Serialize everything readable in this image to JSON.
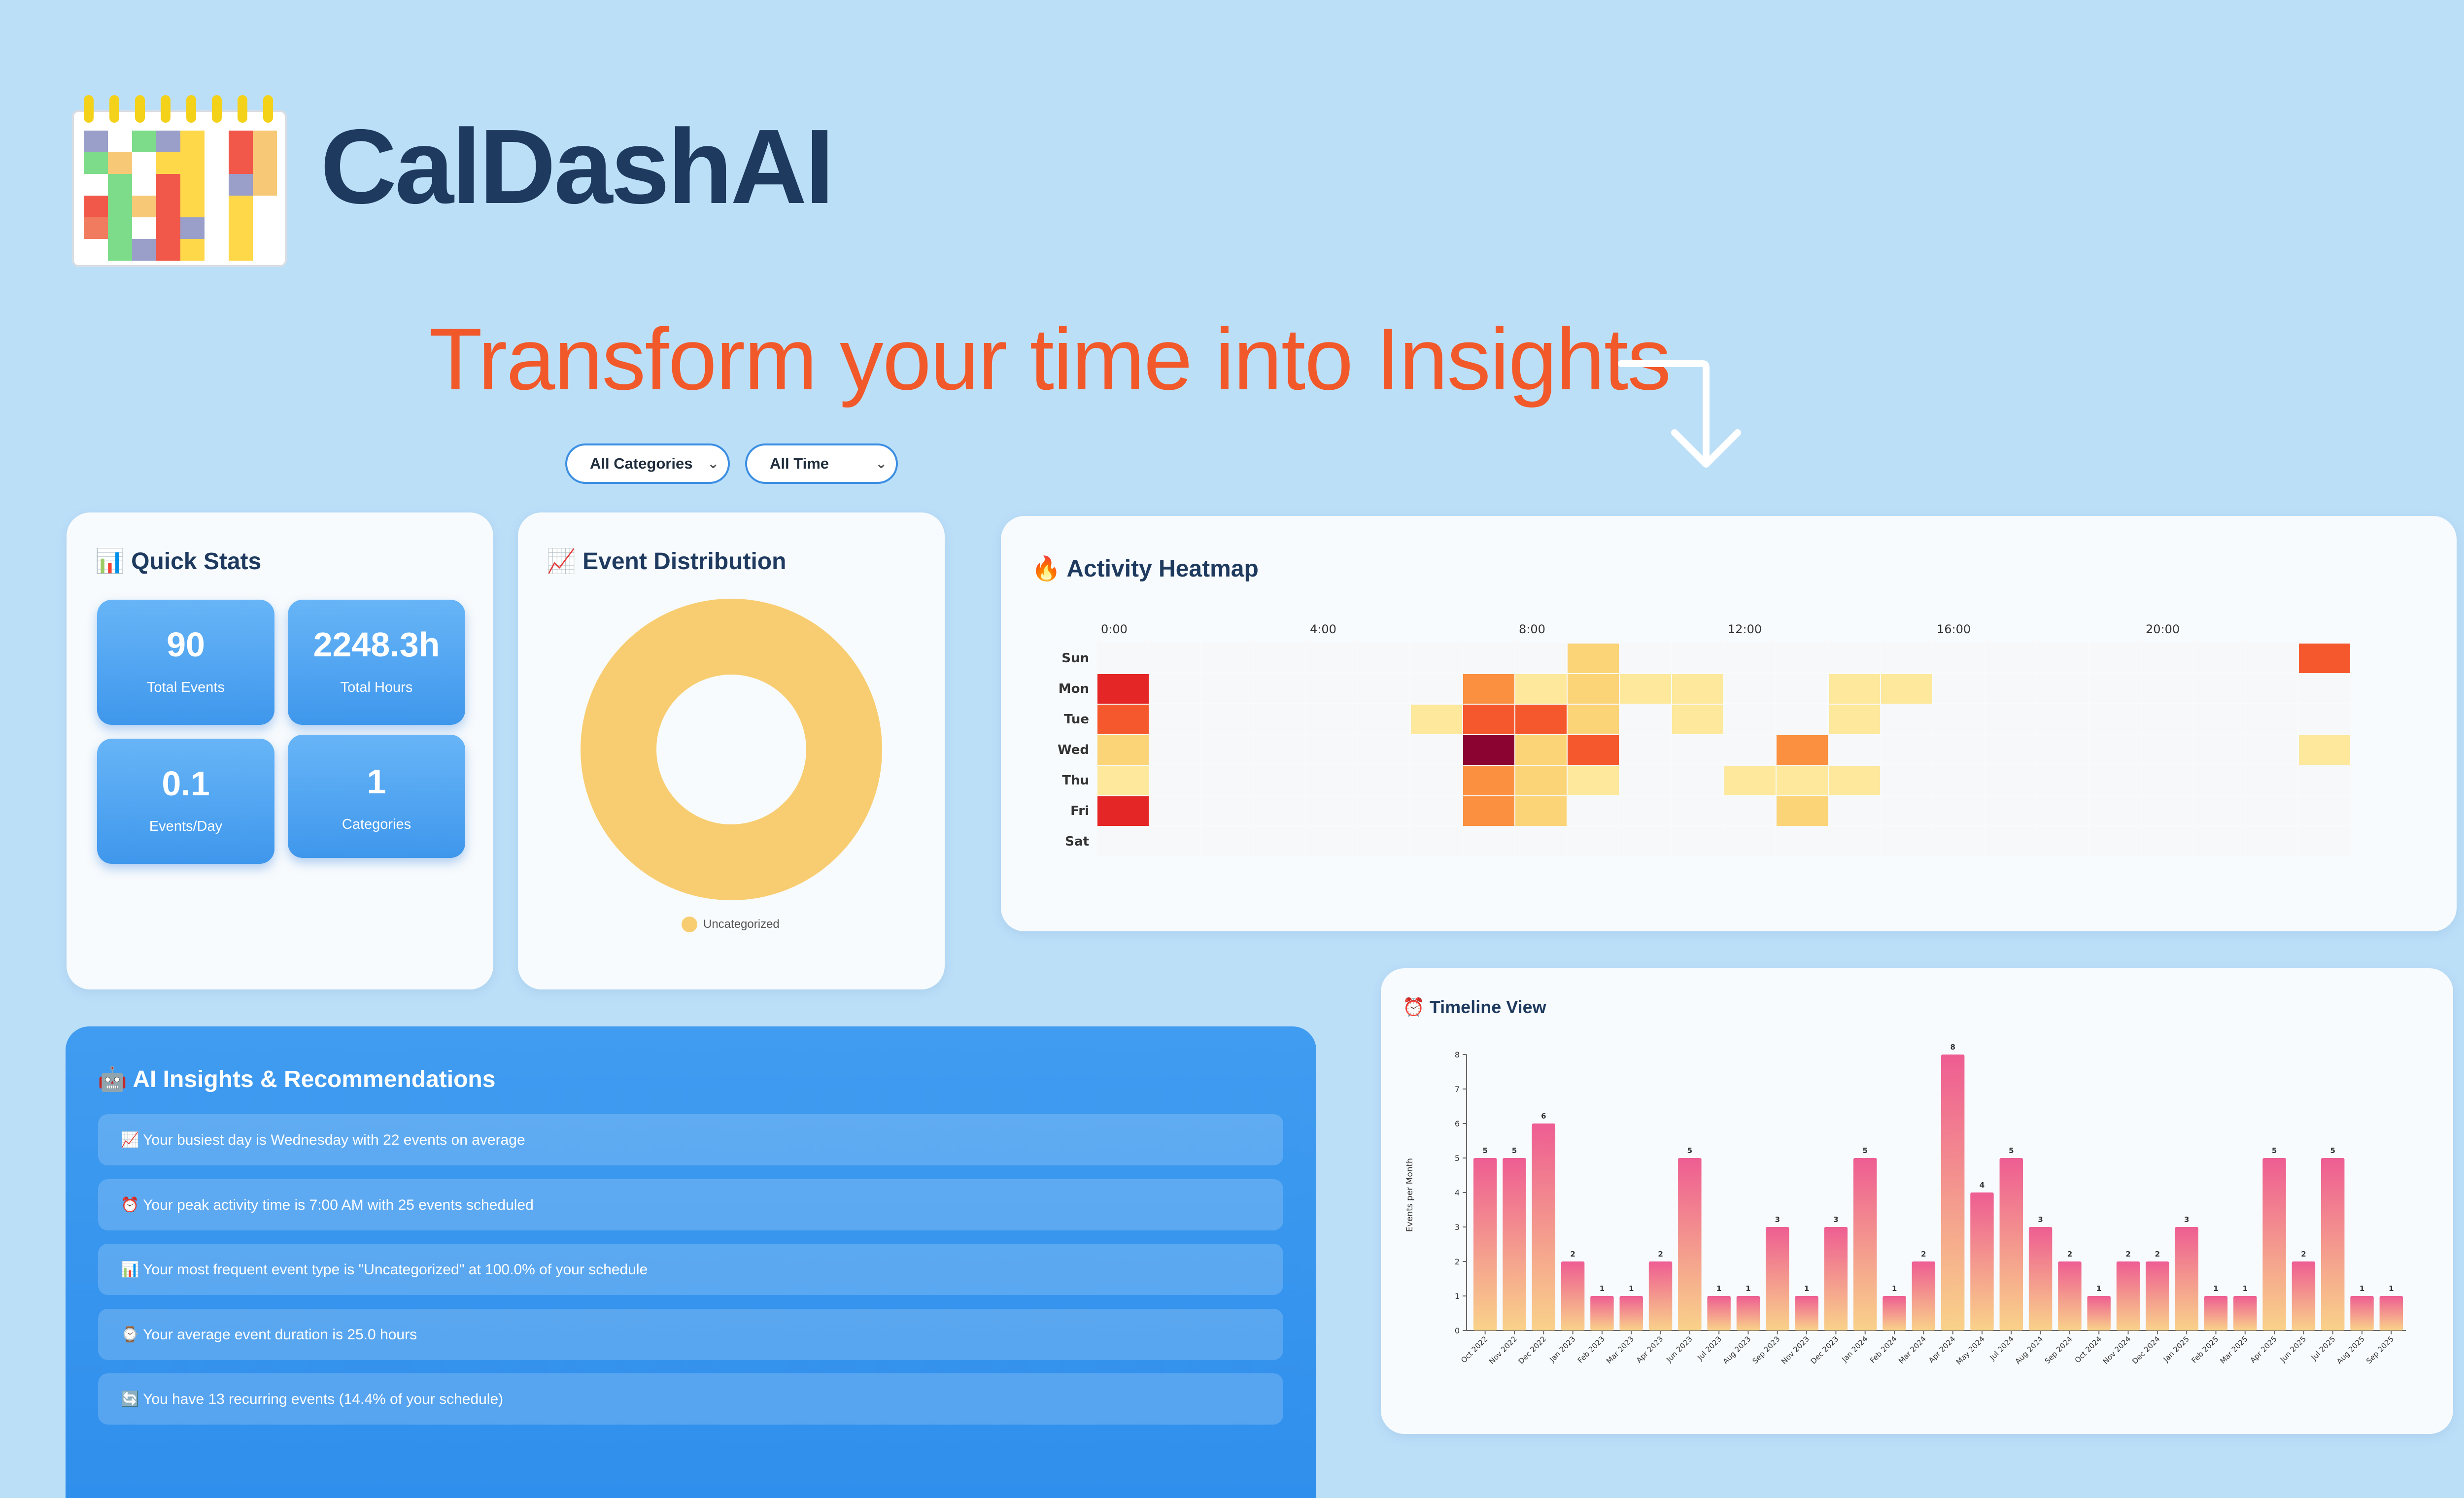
{
  "app": {
    "title": "CalDashAI",
    "tagline": "Transform your time into Insights"
  },
  "filters": {
    "category": "All Categories",
    "time": "All Time"
  },
  "quick_stats": {
    "title": "📊 Quick Stats",
    "items": [
      {
        "value": "90",
        "label": "Total Events"
      },
      {
        "value": "2248.3h",
        "label": "Total Hours"
      },
      {
        "value": "0.1",
        "label": "Events/Day"
      },
      {
        "value": "1",
        "label": "Categories"
      }
    ]
  },
  "event_distribution": {
    "title": "📈 Event Distribution",
    "legend": "Uncategorized",
    "color": "#f8cd72"
  },
  "heatmap": {
    "title": "🔥 Activity Heatmap",
    "x_ticks": [
      "0:00",
      "4:00",
      "8:00",
      "12:00",
      "16:00",
      "20:00"
    ],
    "days": [
      "Sun",
      "Mon",
      "Tue",
      "Wed",
      "Thu",
      "Fri",
      "Sat"
    ],
    "cells": [
      [
        0,
        9,
        2
      ],
      [
        0,
        23,
        5
      ],
      [
        1,
        0,
        6
      ],
      [
        1,
        7,
        4
      ],
      [
        1,
        8,
        1
      ],
      [
        1,
        9,
        2
      ],
      [
        1,
        10,
        1
      ],
      [
        1,
        11,
        1
      ],
      [
        1,
        14,
        1
      ],
      [
        1,
        15,
        1
      ],
      [
        2,
        0,
        5
      ],
      [
        2,
        6,
        1
      ],
      [
        2,
        7,
        5
      ],
      [
        2,
        8,
        5
      ],
      [
        2,
        9,
        2
      ],
      [
        2,
        11,
        1
      ],
      [
        2,
        14,
        1
      ],
      [
        3,
        0,
        2
      ],
      [
        3,
        7,
        8
      ],
      [
        3,
        8,
        2
      ],
      [
        3,
        9,
        5
      ],
      [
        3,
        13,
        4
      ],
      [
        3,
        23,
        1
      ],
      [
        4,
        0,
        1
      ],
      [
        4,
        7,
        4
      ],
      [
        4,
        8,
        2
      ],
      [
        4,
        9,
        1
      ],
      [
        4,
        12,
        1
      ],
      [
        4,
        13,
        1
      ],
      [
        4,
        14,
        1
      ],
      [
        5,
        0,
        6
      ],
      [
        5,
        7,
        4
      ],
      [
        5,
        8,
        2
      ],
      [
        5,
        13,
        2
      ]
    ]
  },
  "timeline": {
    "title": "⏰ Timeline View",
    "ylabel": "Events per Month"
  },
  "chart_data": {
    "type": "bar",
    "categories": [
      "Oct 2022",
      "Nov 2022",
      "Dec 2022",
      "Jan 2023",
      "Feb 2023",
      "Mar 2023",
      "Apr 2023",
      "Jun 2023",
      "Jul 2023",
      "Aug 2023",
      "Sep 2023",
      "Nov 2023",
      "Dec 2023",
      "Jan 2024",
      "Feb 2024",
      "Mar 2024",
      "Apr 2024",
      "May 2024",
      "Jul 2024",
      "Aug 2024",
      "Sep 2024",
      "Oct 2024",
      "Nov 2024",
      "Dec 2024",
      "Jan 2025",
      "Feb 2025",
      "Mar 2025",
      "Apr 2025",
      "Jun 2025",
      "Jul 2025",
      "Aug 2025",
      "Sep 2025"
    ],
    "values": [
      5,
      5,
      6,
      2,
      1,
      1,
      2,
      5,
      1,
      1,
      3,
      1,
      3,
      5,
      1,
      2,
      8,
      4,
      5,
      3,
      2,
      1,
      2,
      2,
      3,
      1,
      1,
      5,
      2,
      5,
      1,
      1
    ],
    "ylabel": "Events per Month",
    "ylim": [
      0,
      8
    ],
    "y_ticks": [
      "0",
      "1",
      "2",
      "3",
      "4",
      "5",
      "6",
      "7",
      "8"
    ]
  },
  "insights": {
    "title": "🤖 AI Insights & Recommendations",
    "items": [
      "📈 Your busiest day is Wednesday with 22 events on average",
      "⏰ Your peak activity time is 7:00 AM with 25 events scheduled",
      "📊 Your most frequent event type is \"Uncategorized\" at 100.0% of your schedule",
      "⌚ Your average event duration is 25.0 hours",
      "🔄 You have 13 recurring events (14.4% of your schedule)"
    ]
  }
}
